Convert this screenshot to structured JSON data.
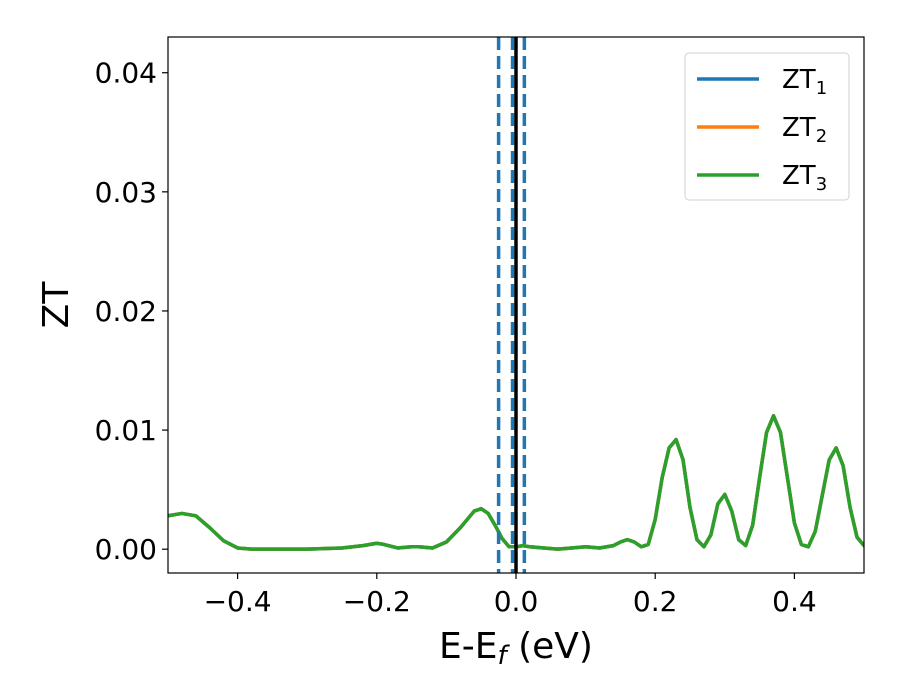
{
  "chart_data": {
    "type": "line",
    "xlabel": "E-E",
    "xlabel_sub": "f",
    "xlabel_unit": " (eV)",
    "ylabel": "ZT",
    "xlim": [
      -0.5,
      0.5
    ],
    "ylim": [
      -0.002,
      0.043
    ],
    "xticks": [
      -0.4,
      -0.2,
      0.0,
      0.2,
      0.4
    ],
    "xtick_labels": [
      "−0.4",
      "−0.2",
      "0.0",
      "0.2",
      "0.4"
    ],
    "yticks": [
      0.0,
      0.01,
      0.02,
      0.03,
      0.04
    ],
    "ytick_labels": [
      "0.00",
      "0.01",
      "0.02",
      "0.03",
      "0.04"
    ],
    "grid": false,
    "legend_position": "top-right",
    "x": [
      -0.5,
      -0.48,
      -0.46,
      -0.44,
      -0.42,
      -0.4,
      -0.38,
      -0.35,
      -0.3,
      -0.25,
      -0.22,
      -0.2,
      -0.19,
      -0.17,
      -0.15,
      -0.14,
      -0.12,
      -0.1,
      -0.08,
      -0.06,
      -0.05,
      -0.04,
      -0.03,
      -0.02,
      -0.01,
      0.0,
      0.01,
      0.02,
      0.04,
      0.06,
      0.08,
      0.1,
      0.12,
      0.14,
      0.15,
      0.16,
      0.17,
      0.18,
      0.19,
      0.2,
      0.21,
      0.22,
      0.23,
      0.24,
      0.25,
      0.26,
      0.27,
      0.28,
      0.29,
      0.3,
      0.31,
      0.32,
      0.33,
      0.34,
      0.35,
      0.36,
      0.37,
      0.38,
      0.39,
      0.4,
      0.41,
      0.42,
      0.43,
      0.44,
      0.45,
      0.46,
      0.47,
      0.48,
      0.49,
      0.5
    ],
    "series": [
      {
        "name": "ZT",
        "name_sub": "1",
        "color": "#1f77b4",
        "values": [
          0.0028,
          0.003,
          0.0028,
          0.0018,
          0.0007,
          0.0001,
          0.0,
          0.0,
          0.0,
          0.0001,
          0.0003,
          0.0005,
          0.0004,
          0.0001,
          0.0002,
          0.0002,
          0.0001,
          0.0006,
          0.0018,
          0.0032,
          0.0034,
          0.003,
          0.002,
          0.0009,
          0.0002,
          0.0002,
          0.0003,
          0.0002,
          0.0001,
          0.0,
          0.0001,
          0.0002,
          0.0001,
          0.0003,
          0.0006,
          0.0008,
          0.0006,
          0.0002,
          0.0004,
          0.0025,
          0.006,
          0.0085,
          0.0092,
          0.0075,
          0.0035,
          0.0008,
          0.0002,
          0.0012,
          0.0038,
          0.0046,
          0.0032,
          0.0008,
          0.0003,
          0.002,
          0.006,
          0.0098,
          0.0112,
          0.0098,
          0.006,
          0.0022,
          0.0004,
          0.0002,
          0.0015,
          0.0045,
          0.0075,
          0.0085,
          0.007,
          0.0035,
          0.001,
          0.0003
        ]
      },
      {
        "name": "ZT",
        "name_sub": "2",
        "color": "#ff7f0e",
        "values": [
          0.0028,
          0.003,
          0.0028,
          0.0018,
          0.0007,
          0.0001,
          0.0,
          0.0,
          0.0,
          0.0001,
          0.0003,
          0.0005,
          0.0004,
          0.0001,
          0.0002,
          0.0002,
          0.0001,
          0.0006,
          0.0018,
          0.0032,
          0.0034,
          0.003,
          0.002,
          0.0009,
          0.0002,
          0.0002,
          0.0003,
          0.0002,
          0.0001,
          0.0,
          0.0001,
          0.0002,
          0.0001,
          0.0003,
          0.0006,
          0.0008,
          0.0006,
          0.0002,
          0.0004,
          0.0025,
          0.006,
          0.0085,
          0.0092,
          0.0075,
          0.0035,
          0.0008,
          0.0002,
          0.0012,
          0.0038,
          0.0046,
          0.0032,
          0.0008,
          0.0003,
          0.002,
          0.006,
          0.0098,
          0.0112,
          0.0098,
          0.006,
          0.0022,
          0.0004,
          0.0002,
          0.0015,
          0.0045,
          0.0075,
          0.0085,
          0.007,
          0.0035,
          0.001,
          0.0003
        ]
      },
      {
        "name": "ZT",
        "name_sub": "3",
        "color": "#2ca02c",
        "values": [
          0.0028,
          0.003,
          0.0028,
          0.0018,
          0.0007,
          0.0001,
          0.0,
          0.0,
          0.0,
          0.0001,
          0.0003,
          0.0005,
          0.0004,
          0.0001,
          0.0002,
          0.0002,
          0.0001,
          0.0006,
          0.0018,
          0.0032,
          0.0034,
          0.003,
          0.002,
          0.0009,
          0.0002,
          0.0002,
          0.0003,
          0.0002,
          0.0001,
          0.0,
          0.0001,
          0.0002,
          0.0001,
          0.0003,
          0.0006,
          0.0008,
          0.0006,
          0.0002,
          0.0004,
          0.0025,
          0.006,
          0.0085,
          0.0092,
          0.0075,
          0.0035,
          0.0008,
          0.0002,
          0.0012,
          0.0038,
          0.0046,
          0.0032,
          0.0008,
          0.0003,
          0.002,
          0.006,
          0.0098,
          0.0112,
          0.0098,
          0.006,
          0.0022,
          0.0004,
          0.0002,
          0.0015,
          0.0045,
          0.0075,
          0.0085,
          0.007,
          0.0035,
          0.001,
          0.0003
        ]
      }
    ],
    "vlines": [
      {
        "x": -0.025,
        "style": "dashed",
        "color": "#1f77b4"
      },
      {
        "x": -0.005,
        "style": "dashed",
        "color": "#1f77b4"
      },
      {
        "x": 0.012,
        "style": "dashed",
        "color": "#1f77b4"
      },
      {
        "x": 0.0,
        "style": "solid",
        "color": "#000000"
      }
    ]
  }
}
